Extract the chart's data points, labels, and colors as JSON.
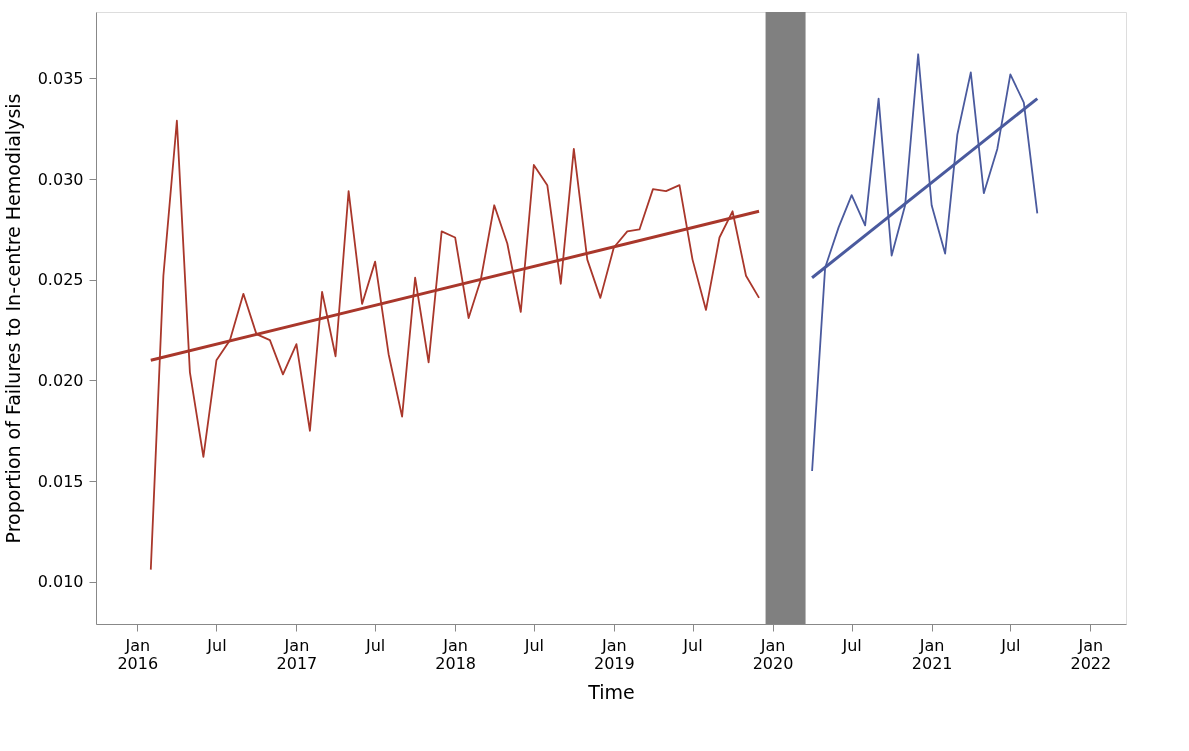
{
  "chart_data": {
    "type": "line",
    "xlabel": "Time",
    "ylabel": "Proportion of Failures to In-centre Hemodialysis",
    "xlim": [
      "2015-09-28",
      "2022-03-24"
    ],
    "ylim": [
      0.0079,
      0.0383
    ],
    "xticks": [
      {
        "value": "2016-01",
        "label": "Jan\n2016"
      },
      {
        "value": "2016-07",
        "label": "Jul"
      },
      {
        "value": "2017-01",
        "label": "Jan\n2017"
      },
      {
        "value": "2017-07",
        "label": "Jul"
      },
      {
        "value": "2018-01",
        "label": "Jan\n2018"
      },
      {
        "value": "2018-07",
        "label": "Jul"
      },
      {
        "value": "2019-01",
        "label": "Jan\n2019"
      },
      {
        "value": "2019-07",
        "label": "Jul"
      },
      {
        "value": "2020-01",
        "label": "Jan\n2020"
      },
      {
        "value": "2020-07",
        "label": "Jul"
      },
      {
        "value": "2021-01",
        "label": "Jan\n2021"
      },
      {
        "value": "2021-07",
        "label": "Jul"
      },
      {
        "value": "2022-01",
        "label": "Jan\n2022"
      }
    ],
    "yticks": [
      {
        "value": 0.01,
        "label": "0.010"
      },
      {
        "value": 0.015,
        "label": "0.015"
      },
      {
        "value": 0.02,
        "label": "0.020"
      },
      {
        "value": 0.025,
        "label": "0.025"
      },
      {
        "value": 0.03,
        "label": "0.030"
      },
      {
        "value": 0.035,
        "label": "0.035"
      }
    ],
    "grid": false,
    "marker": "none",
    "line_style": "solid",
    "bands": [
      {
        "axis": "x",
        "from": "2019-12-16",
        "to": "2020-03-17",
        "color": "#808080"
      }
    ],
    "series": [
      {
        "color": "#a9372b",
        "x": [
          "2016-02",
          "2016-03",
          "2016-04",
          "2016-05",
          "2016-06",
          "2016-07",
          "2016-08",
          "2016-09",
          "2016-10",
          "2016-11",
          "2016-12",
          "2017-01",
          "2017-02",
          "2017-03",
          "2017-04",
          "2017-05",
          "2017-06",
          "2017-07",
          "2017-08",
          "2017-09",
          "2017-10",
          "2017-11",
          "2017-12",
          "2018-01",
          "2018-02",
          "2018-03",
          "2018-04",
          "2018-05",
          "2018-06",
          "2018-07",
          "2018-08",
          "2018-09",
          "2018-10",
          "2018-11",
          "2018-12",
          "2019-01",
          "2019-02",
          "2019-03",
          "2019-04",
          "2019-05",
          "2019-06",
          "2019-07",
          "2019-08",
          "2019-09",
          "2019-10",
          "2019-11",
          "2019-12"
        ],
        "values": [
          0.0106,
          0.0252,
          0.0329,
          0.0204,
          0.0162,
          0.021,
          0.022,
          0.0243,
          0.0223,
          0.022,
          0.0203,
          0.0218,
          0.0175,
          0.0244,
          0.0212,
          0.0294,
          0.0238,
          0.0259,
          0.0213,
          0.0182,
          0.0251,
          0.0209,
          0.0274,
          0.0271,
          0.0231,
          0.025,
          0.0287,
          0.0268,
          0.0234,
          0.0307,
          0.0297,
          0.0248,
          0.0315,
          0.026,
          0.0241,
          0.0266,
          0.0274,
          0.0275,
          0.0295,
          0.0294,
          0.0297,
          0.026,
          0.0235,
          0.0271,
          0.0284,
          0.0252,
          0.0241
        ]
      },
      {
        "type": "line",
        "color": "#a9372b",
        "x": [
          "2016-02",
          "2019-12"
        ],
        "values": [
          0.021,
          0.0284
        ]
      },
      {
        "color": "#4a5a9e",
        "x": [
          "2020-04",
          "2020-05",
          "2020-06",
          "2020-07",
          "2020-08",
          "2020-09",
          "2020-10",
          "2020-11",
          "2020-12",
          "2021-01",
          "2021-02",
          "2021-03",
          "2021-04",
          "2021-05",
          "2021-06",
          "2021-07",
          "2021-08",
          "2021-09"
        ],
        "values": [
          0.0155,
          0.0256,
          0.0276,
          0.0292,
          0.0277,
          0.034,
          0.0262,
          0.0287,
          0.0362,
          0.0287,
          0.0263,
          0.0322,
          0.0353,
          0.0293,
          0.0315,
          0.0352,
          0.0338,
          0.0283
        ]
      },
      {
        "type": "line",
        "color": "#4a5a9e",
        "x": [
          "2020-04",
          "2021-09"
        ],
        "values": [
          0.0251,
          0.034
        ]
      }
    ]
  }
}
